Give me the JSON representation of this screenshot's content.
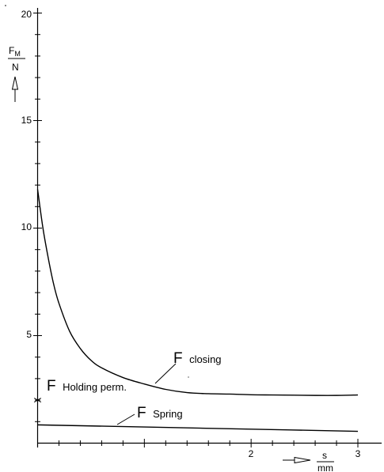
{
  "chart_data": {
    "type": "line",
    "xlim": [
      0,
      3
    ],
    "ylim": [
      0,
      20
    ],
    "y_ticks": [
      5,
      10,
      15,
      20
    ],
    "x_ticks": [
      2,
      3
    ],
    "y_unit": {
      "num": "F",
      "sub": "M",
      "den": "N"
    },
    "x_unit": {
      "num": "s",
      "den": "mm"
    },
    "grid": false,
    "series": [
      {
        "name": "F closing",
        "x": [
          0,
          0.05,
          0.1,
          0.15,
          0.2,
          0.3,
          0.4,
          0.5,
          0.6,
          0.8,
          1.0,
          1.2,
          1.4,
          1.6,
          1.8,
          2.0,
          2.2,
          2.4,
          2.6,
          2.8,
          3.0
        ],
        "values": [
          11.8,
          10.0,
          8.6,
          7.4,
          6.5,
          5.2,
          4.4,
          3.85,
          3.5,
          3.05,
          2.75,
          2.5,
          2.35,
          2.3,
          2.28,
          2.25,
          2.24,
          2.23,
          2.22,
          2.22,
          2.24
        ]
      },
      {
        "name": "F Spring",
        "x": [
          0,
          1.0,
          2.0,
          3.0
        ],
        "values": [
          0.85,
          0.75,
          0.65,
          0.55
        ]
      }
    ],
    "markers": [
      {
        "label": "F Holding perm.",
        "x": 0,
        "y": 2.0
      }
    ],
    "annotations": [
      {
        "big": "F",
        "small": "closing"
      },
      {
        "big": "F",
        "small": "Holding perm."
      },
      {
        "big": "F",
        "small": "Spring"
      }
    ]
  }
}
